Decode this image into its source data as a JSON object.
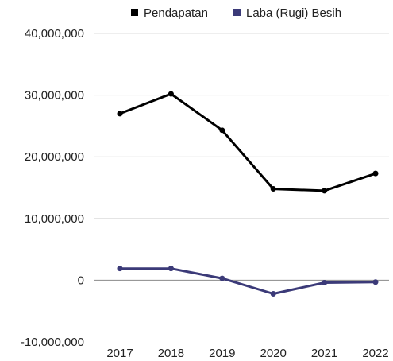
{
  "chart_data": {
    "type": "line",
    "title": "",
    "xlabel": "",
    "ylabel": "",
    "categories": [
      "2017",
      "2018",
      "2019",
      "2020",
      "2021",
      "2022"
    ],
    "series": [
      {
        "name": "Pendapatan",
        "color": "#000000",
        "values": [
          27000000,
          30200000,
          24300000,
          14800000,
          14500000,
          17300000
        ]
      },
      {
        "name": "Laba (Rugi) Besih",
        "color": "#3b3a78",
        "values": [
          1900000,
          1900000,
          300000,
          -2200000,
          -400000,
          -300000
        ]
      }
    ],
    "ylim": [
      -10000000,
      40000000
    ],
    "yticks": [
      {
        "value": -10000000,
        "label": "-10,000,000"
      },
      {
        "value": 0,
        "label": "0"
      },
      {
        "value": 10000000,
        "label": "10,000,000"
      },
      {
        "value": 20000000,
        "label": "20,000,000"
      },
      {
        "value": 30000000,
        "label": "30,000,000"
      },
      {
        "value": 40000000,
        "label": "40,000,000"
      }
    ],
    "grid": true,
    "legend_position": "top"
  }
}
